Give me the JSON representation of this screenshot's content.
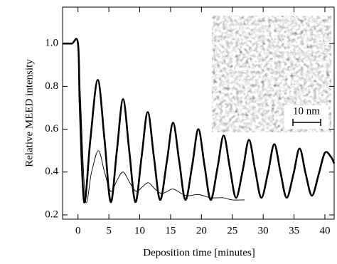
{
  "chart_data": {
    "type": "line",
    "xlabel": "Deposition time [minutes]",
    "ylabel": "Relative MEED intensity",
    "xlim": [
      -2.5,
      41.5
    ],
    "ylim": [
      0.18,
      1.17
    ],
    "xticks": [
      0,
      5,
      10,
      15,
      20,
      25,
      30,
      35,
      40
    ],
    "yticks": [
      0.2,
      0.4,
      0.6,
      0.8,
      {
        "value": 1,
        "label": "1.0"
      }
    ],
    "series": [
      {
        "color": "#000000",
        "line_width": 2.6,
        "x": [
          -2.5,
          -1,
          0,
          0.3,
          1,
          2,
          3.2,
          4.3,
          5.3,
          6.3,
          7.3,
          8.3,
          9.3,
          10.3,
          11.3,
          12.3,
          13.3,
          14.4,
          15.4,
          16.4,
          17.4,
          18.5,
          19.5,
          20.5,
          21.5,
          22.6,
          23.6,
          24.6,
          25.6,
          26.7,
          27.7,
          28.7,
          29.7,
          30.8,
          31.8,
          32.8,
          33.8,
          34.9,
          35.9,
          36.9,
          37.9,
          39,
          40,
          41,
          41.5
        ],
        "values": [
          1,
          1,
          1,
          0.7,
          0.26,
          0.55,
          0.83,
          0.55,
          0.26,
          0.5,
          0.74,
          0.5,
          0.26,
          0.47,
          0.68,
          0.47,
          0.27,
          0.45,
          0.63,
          0.45,
          0.27,
          0.43,
          0.6,
          0.43,
          0.27,
          0.42,
          0.57,
          0.42,
          0.28,
          0.41,
          0.55,
          0.41,
          0.28,
          0.4,
          0.53,
          0.4,
          0.28,
          0.39,
          0.51,
          0.39,
          0.29,
          0.39,
          0.49,
          0.47,
          0.44
        ]
      },
      {
        "color": "#000000",
        "line_width": 0.9,
        "x": [
          -2.5,
          -1,
          0,
          0.4,
          1.2,
          2.2,
          3.3,
          4.3,
          5.3,
          6.3,
          7.3,
          8.4,
          9.4,
          10.4,
          11.4,
          12.5,
          13.5,
          14.5,
          15.5,
          17.5,
          19.5,
          21.5,
          23.5,
          25,
          27
        ],
        "values": [
          1,
          1,
          1,
          0.75,
          0.27,
          0.4,
          0.5,
          0.4,
          0.31,
          0.36,
          0.4,
          0.35,
          0.31,
          0.33,
          0.35,
          0.32,
          0.3,
          0.31,
          0.32,
          0.29,
          0.295,
          0.28,
          0.28,
          0.27,
          0.27
        ]
      }
    ],
    "inset_scale_label": "10 nm"
  }
}
